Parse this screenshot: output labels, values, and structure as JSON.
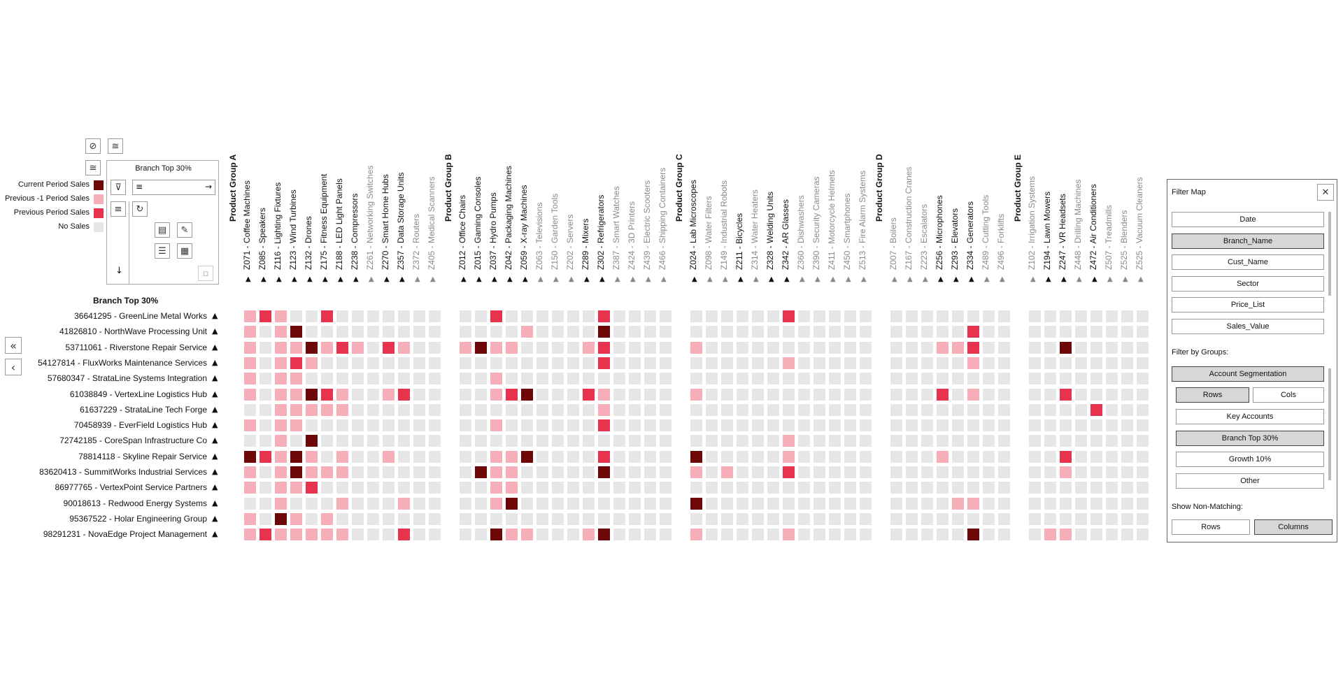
{
  "legend": {
    "items": [
      {
        "label": "Current Period Sales",
        "color": "#6e0707"
      },
      {
        "label": "Previous -1 Period Sales",
        "color": "#f6aeb8"
      },
      {
        "label": "Previous Period Sales",
        "color": "#e8334e"
      },
      {
        "label": "No Sales",
        "color": "#e6e6e6"
      }
    ]
  },
  "config_panel": {
    "title": "Branch Top 30%",
    "sort_icon": "sort-lines",
    "arrow_icon": "→"
  },
  "rows_header": "Branch Top 30%",
  "nav": {
    "first": "«",
    "prev": "‹"
  },
  "column_groups": [
    {
      "title": "Product Group A",
      "columns": [
        {
          "label": "Z071 - Coffee Machines",
          "active": true
        },
        {
          "label": "Z085 - Speakers",
          "active": true
        },
        {
          "label": "Z116 - Lighting Fixtures",
          "active": true
        },
        {
          "label": "Z123 - Wind Turbines",
          "active": true
        },
        {
          "label": "Z132 - Drones",
          "active": true
        },
        {
          "label": "Z175 - Fitness Equipment",
          "active": true
        },
        {
          "label": "Z188 - LED Light Panels",
          "active": true
        },
        {
          "label": "Z238 - Compressors",
          "active": true
        },
        {
          "label": "Z261 - Networking Switches",
          "active": false
        },
        {
          "label": "Z270 - Smart Home Hubs",
          "active": true
        },
        {
          "label": "Z357 - Data Storage Units",
          "active": true
        },
        {
          "label": "Z372 - Routers",
          "active": false
        },
        {
          "label": "Z405 - Medical Scanners",
          "active": false
        }
      ]
    },
    {
      "title": "Product Group B",
      "columns": [
        {
          "label": "Z012 - Office Chairs",
          "active": true
        },
        {
          "label": "Z015 - Gaming Consoles",
          "active": true
        },
        {
          "label": "Z037 - Hydro Pumps",
          "active": true
        },
        {
          "label": "Z042 - Packaging Machines",
          "active": true
        },
        {
          "label": "Z059 - X-ray Machines",
          "active": true
        },
        {
          "label": "Z063 - Televisions",
          "active": false
        },
        {
          "label": "Z150 - Garden Tools",
          "active": false
        },
        {
          "label": "Z202 - Servers",
          "active": false
        },
        {
          "label": "Z289 - Mixers",
          "active": true
        },
        {
          "label": "Z302 - Refrigerators",
          "active": true
        },
        {
          "label": "Z387 - Smart Watches",
          "active": false
        },
        {
          "label": "Z424 - 3D Printers",
          "active": false
        },
        {
          "label": "Z439 - Electric Scooters",
          "active": false
        },
        {
          "label": "Z466 - Shipping Containers",
          "active": false
        }
      ]
    },
    {
      "title": "Product Group C",
      "columns": [
        {
          "label": "Z024 - Lab Microscopes",
          "active": true
        },
        {
          "label": "Z098 - Water Filters",
          "active": false
        },
        {
          "label": "Z149 - Industrial Robots",
          "active": false
        },
        {
          "label": "Z211 - Bicycles",
          "active": true
        },
        {
          "label": "Z314 - Water Heaters",
          "active": false
        },
        {
          "label": "Z328 - Welding Units",
          "active": true
        },
        {
          "label": "Z342 - AR Glasses",
          "active": true
        },
        {
          "label": "Z360 - Dishwashers",
          "active": false
        },
        {
          "label": "Z390 - Security Cameras",
          "active": false
        },
        {
          "label": "Z411 - Motorcycle Helmets",
          "active": false
        },
        {
          "label": "Z450 - Smartphones",
          "active": false
        },
        {
          "label": "Z513 - Fire Alarm Systems",
          "active": false
        }
      ]
    },
    {
      "title": "Product Group D",
      "columns": [
        {
          "label": "Z007 - Boilers",
          "active": false
        },
        {
          "label": "Z167 - Construction Cranes",
          "active": false
        },
        {
          "label": "Z223 - Escalators",
          "active": false
        },
        {
          "label": "Z256 - Microphones",
          "active": true
        },
        {
          "label": "Z293 - Elevators",
          "active": true
        },
        {
          "label": "Z334 - Generators",
          "active": true
        },
        {
          "label": "Z489 - Cutting Tools",
          "active": false
        },
        {
          "label": "Z496 - Forklifts",
          "active": false
        }
      ]
    },
    {
      "title": "Product Group E",
      "columns": [
        {
          "label": "Z102 - Irrigation Systems",
          "active": false
        },
        {
          "label": "Z194 - Lawn Mowers",
          "active": true
        },
        {
          "label": "Z247 - VR Headsets",
          "active": true
        },
        {
          "label": "Z448 - Drilling Machines",
          "active": false
        },
        {
          "label": "Z472 - Air Conditioners",
          "active": true
        },
        {
          "label": "Z507 - Treadmills",
          "active": false
        },
        {
          "label": "Z525 - Blenders",
          "active": false
        },
        {
          "label": "Z525 - Vacuum Cleaners",
          "active": false
        }
      ]
    }
  ],
  "rows": [
    {
      "label": "36641295 - GreenLine Metal Works",
      "cells": "PRPNNRNNNNNNN NNRNNNNNNRNNNN NNNNNNRNNNNN NNNNNNNN NNNNNNNN"
    },
    {
      "label": "41826810 - NorthWave Processing Unit",
      "cells": "PNPCNNNNNNNNN NNNNPNNNNCNNNN NNNNNNNNNNNN NNNNNRNN NNNNNNNN"
    },
    {
      "label": "53711061 - Riverstone Repair Service",
      "cells": "PNPPCPRPNRPNN PCPPNNNNPRNNNN PNNNNNNNNNNN NNNPPRNN NNCNNNNN"
    },
    {
      "label": "54127814 - FluxWorks Maintenance Services",
      "cells": "PNPRPNNNNNNNN NNNNNNNNNRNNNN NNNNNNPNNNNN NNNNNPNN NNNNNNNN"
    },
    {
      "label": "57680347 - StrataLine Systems Integration",
      "cells": "PNPPNNNNNNNNN NNPNNNNNNNNNNN NNNNNNNNNNNN NNNNNNNN NNNNNNNN"
    },
    {
      "label": "61038849 - VertexLine Logistics Hub",
      "cells": "PNPPCRPNNPRNN NNPRCNNNRPNNNN PNNNNNNNNNNN NNNRNPNN NNRNNNNN"
    },
    {
      "label": "61637229 - StrataLine Tech Forge",
      "cells": "NNPPPPPNNNNNN NNNNNNNNNPNNNN NNNNNNNNNNNN NNNNNNNN NNNNRNNN"
    },
    {
      "label": "70458939 - EverField Logistics Hub",
      "cells": "PNPPNNNNNNNNN NNPNNNNNNRNNNN NNNNNNNNNNNN NNNNNNNN NNNNNNNN"
    },
    {
      "label": "72742185 - CoreSpan Infrastructure Co",
      "cells": "NNPNCNNNNNNNN NNNNNNNNNNNNNN NNNNNNPNNNNN NNNNNNNN NNNNNNNN"
    },
    {
      "label": "78814118 - Skyline Repair Service",
      "cells": "CRPCPNPNNPNNN NNPPCNNNNRNNNN CNNNNNPNNNNN NNNPNNNN NNRNNNNN"
    },
    {
      "label": "83620413 - SummitWorks Industrial Services",
      "cells": "PNPCPPPNNNNNN NCPPNNNNNCNNNN PNPNNNRNNNNN NNNNNNNN NNPNNNNN"
    },
    {
      "label": "86977765 - VertexPoint Service Partners",
      "cells": "PNPPRNNNNNNNN NNPPNNNNNNNNNN NNNNNNNNNNNN NNNNNNNN NNNNNNNN"
    },
    {
      "label": "90018613 - Redwood Energy Systems",
      "cells": "NNPNNNPNNNPNN NNPCNNNNNNNNNN CNNNNNNNNNNN NNNNPPNN NNNNNNNN"
    },
    {
      "label": "95367522 - Holar Engineering Group",
      "cells": "PNCPNPNNNNNNN NNNNNNNNNNNNNN NNNNNNNNNNNN NNNNNNNN NNNNNNNN"
    },
    {
      "label": "98291231 - NovaEdge Project Management",
      "cells": "PRPPPPPNNNRNN NNCPPNNNPCNNNN PNNNNNPNNNNN NNNNNCNN NPPNNNNN"
    }
  ],
  "cell_colors": {
    "C": "#6e0707",
    "R": "#e8334e",
    "P": "#f6aeb8",
    "N": "#e6e6e6"
  },
  "filter_map": {
    "title": "Filter Map",
    "close": "✕",
    "fields": [
      {
        "label": "Date",
        "selected": false
      },
      {
        "label": "Branch_Name",
        "selected": true
      },
      {
        "label": "Cust_Name",
        "selected": false
      },
      {
        "label": "Sector",
        "selected": false
      },
      {
        "label": "Price_List",
        "selected": false
      },
      {
        "label": "Sales_Value",
        "selected": false
      }
    ],
    "groups_title": "Filter by Groups:",
    "account_segmentation": "Account Segmentation",
    "rows_btn": "Rows",
    "cols_btn": "Cols",
    "group_items": [
      {
        "label": "Key Accounts",
        "selected": false
      },
      {
        "label": "Branch Top 30%",
        "selected": true
      },
      {
        "label": "Growth 10%",
        "selected": false
      },
      {
        "label": "Other",
        "selected": false
      }
    ],
    "non_matching_title": "Show Non-Matching:",
    "nm_rows": "Rows",
    "nm_columns": "Columns"
  }
}
